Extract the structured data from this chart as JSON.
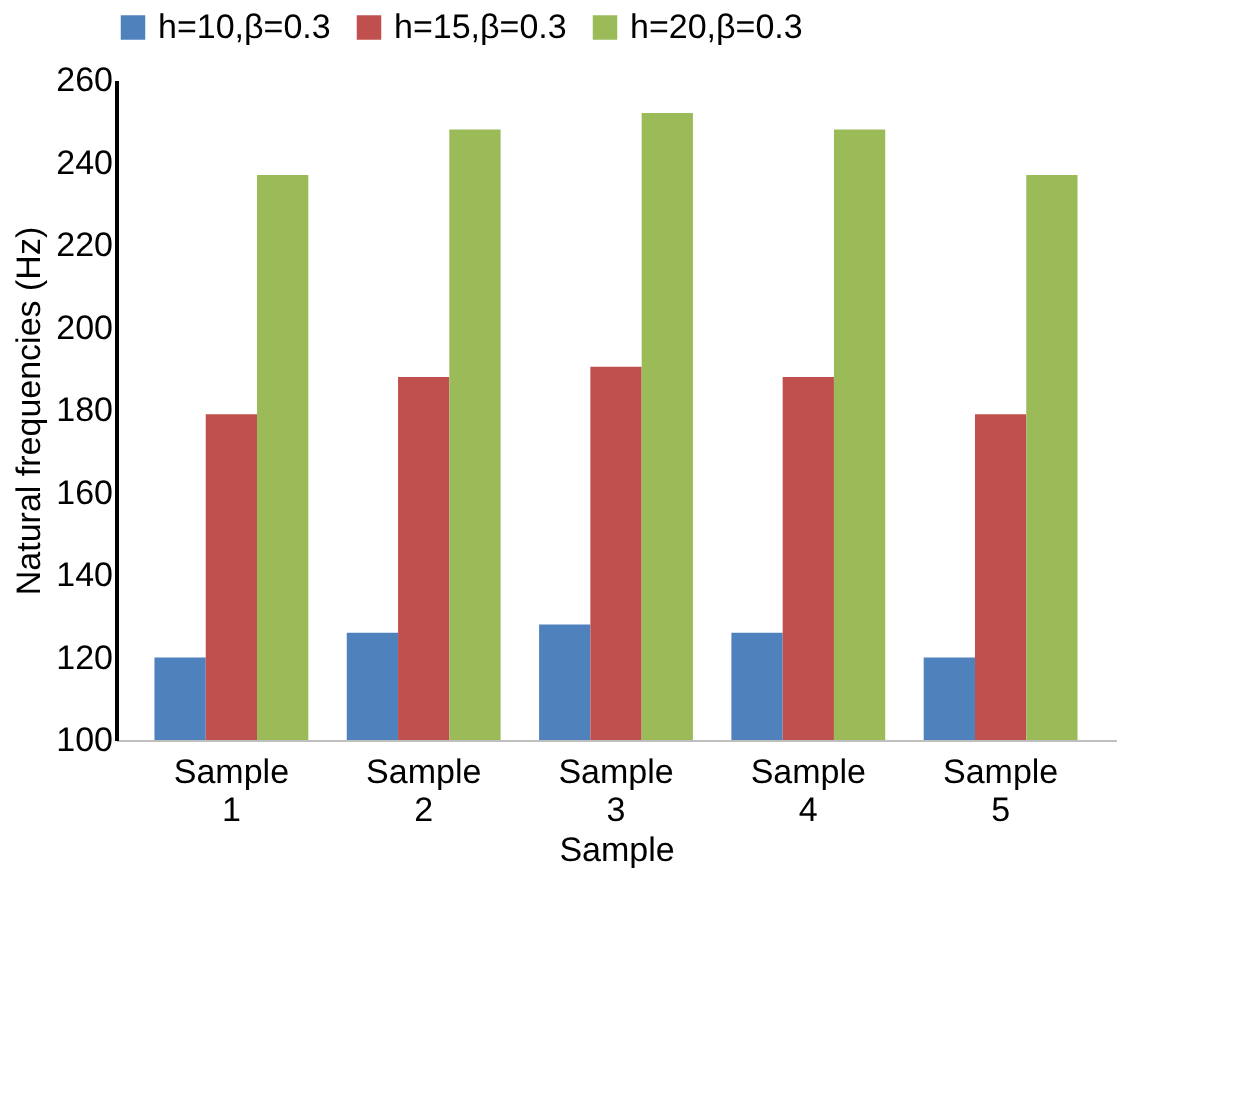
{
  "chart_data": {
    "type": "bar",
    "xlabel": "Sample",
    "ylabel": "Natural frequencies  (Hz)",
    "categories": [
      "Sample 1",
      "Sample 2",
      "Sample 3",
      "Sample 4",
      "Sample 5"
    ],
    "series": [
      {
        "name": "h=10,β=0.3",
        "color": "#4f81bd",
        "values": [
          120,
          126,
          128,
          126,
          120
        ]
      },
      {
        "name": "h=15,β=0.3",
        "color": "#c0504d",
        "values": [
          179,
          188,
          190.5,
          188,
          179
        ]
      },
      {
        "name": "h=20,β=0.3",
        "color": "#9bbb59",
        "values": [
          237,
          248,
          252,
          248,
          237
        ]
      }
    ],
    "ylim": [
      100,
      260
    ],
    "yticks": [
      100,
      120,
      140,
      160,
      180,
      200,
      220,
      240,
      260
    ],
    "grid": false,
    "legend": "top"
  }
}
